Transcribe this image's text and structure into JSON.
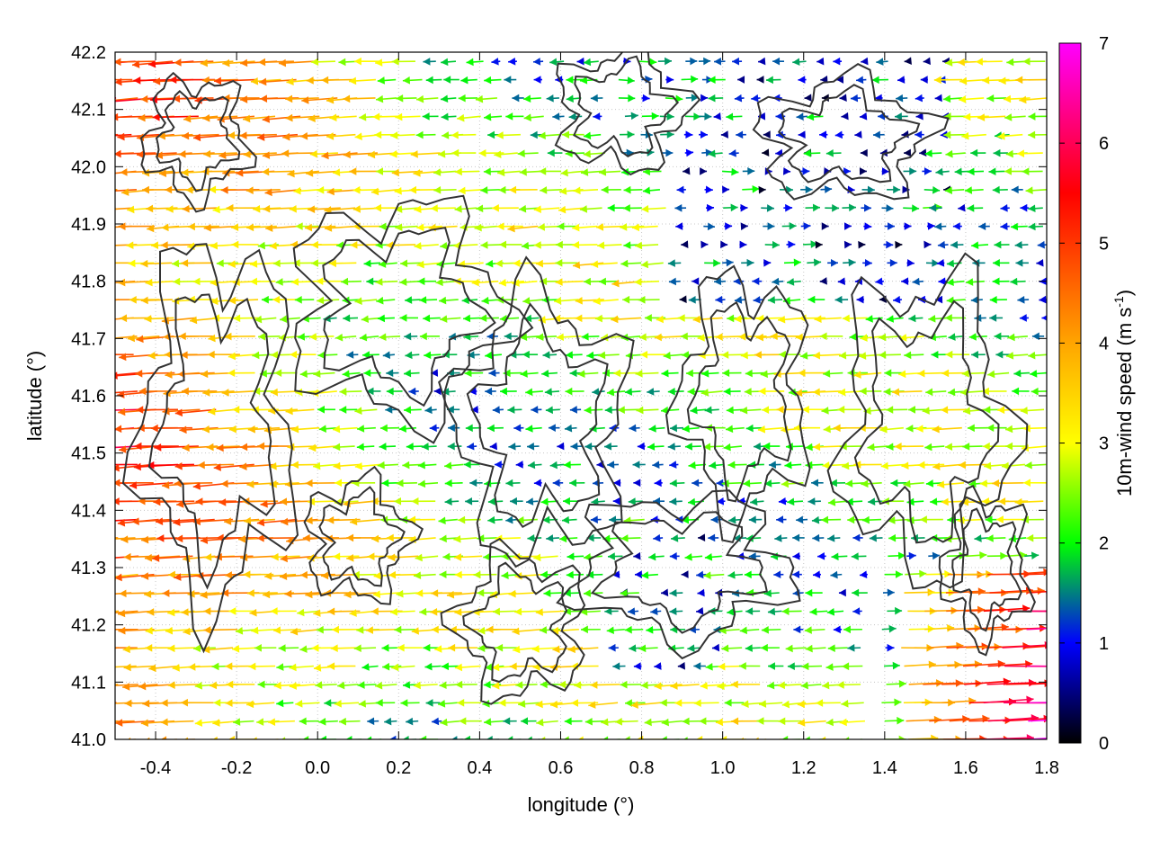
{
  "chart_data": {
    "type": "vector-field",
    "xlabel": "longitude (°)",
    "ylabel": "latitude (°)",
    "xlim": [
      -0.5,
      1.8
    ],
    "ylim": [
      41.0,
      42.2
    ],
    "x_ticks": [
      "-0.4",
      "-0.2",
      "0.0",
      "0.2",
      "0.4",
      "0.6",
      "0.8",
      "1.0",
      "1.2",
      "1.4",
      "1.6",
      "1.8"
    ],
    "x_tick_values": [
      -0.4,
      -0.2,
      0.0,
      0.2,
      0.4,
      0.6,
      0.8,
      1.0,
      1.2,
      1.4,
      1.6,
      1.8
    ],
    "y_ticks": [
      "41.0",
      "41.1",
      "41.2",
      "41.3",
      "41.4",
      "41.5",
      "41.6",
      "41.7",
      "41.8",
      "41.9",
      "42.0",
      "42.1",
      "42.2"
    ],
    "y_tick_values": [
      41.0,
      41.1,
      41.2,
      41.3,
      41.4,
      41.5,
      41.6,
      41.7,
      41.8,
      41.9,
      42.0,
      42.1,
      42.2
    ],
    "grid": true,
    "colorbar": {
      "label_main": "10m-wind speed (m s",
      "label_sup": "-1",
      "label_close": ")",
      "range": [
        0,
        7
      ],
      "tick_labels": [
        "0",
        "1",
        "2",
        "3",
        "4",
        "5",
        "6",
        "7"
      ],
      "tick_values": [
        0,
        1,
        2,
        3,
        4,
        5,
        6,
        7
      ],
      "palette": [
        "#000000",
        "#0000ff",
        "#00ff00",
        "#ffff00",
        "#ffa500",
        "#ff0000",
        "#ff00ff"
      ],
      "palette_stops": [
        0,
        1,
        2,
        3,
        4,
        5.5,
        7
      ]
    },
    "contour_color": "#333333"
  }
}
